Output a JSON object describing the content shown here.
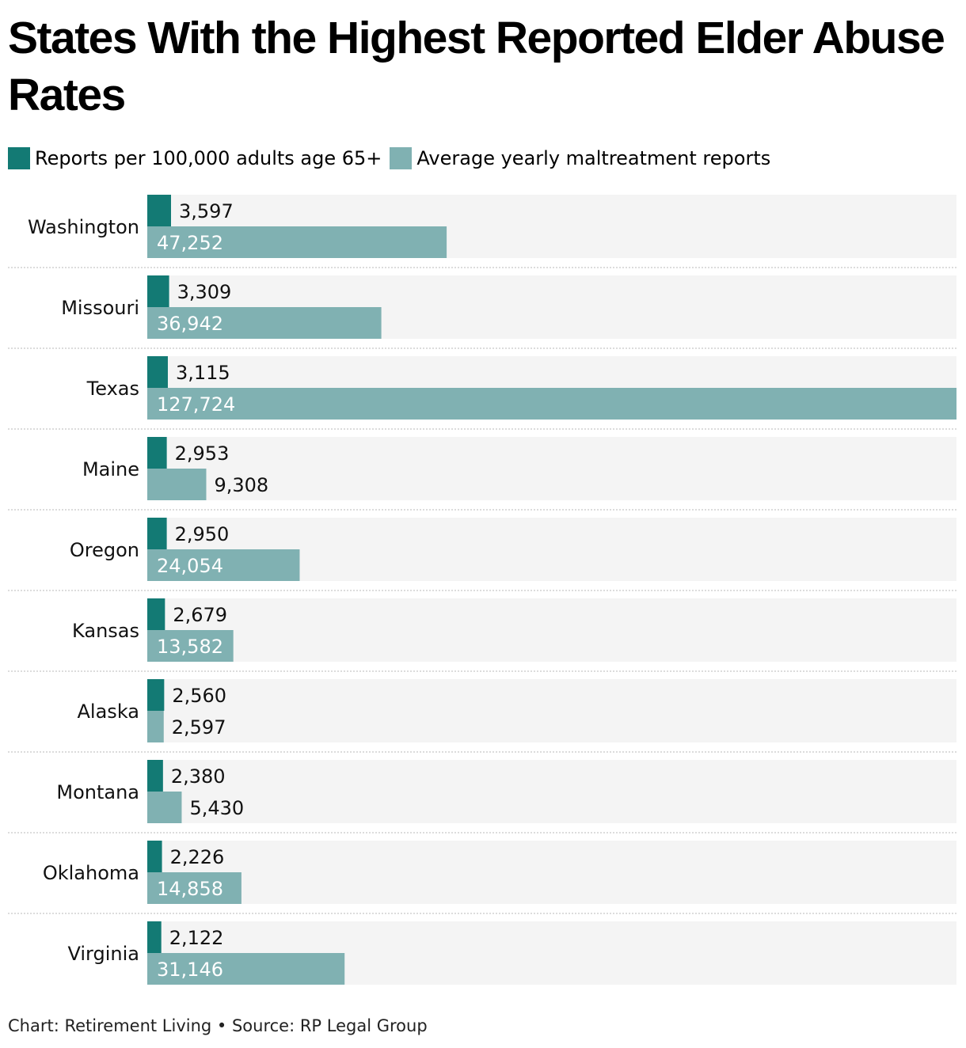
{
  "title": "States With the Highest Reported Elder Abuse Rates",
  "legend": {
    "rate_label": "Reports per 100,000 adults age 65+",
    "count_label": "Average yearly maltreatment reports"
  },
  "colors": {
    "rate": "#137a74",
    "count": "#80b1b2",
    "row_bg": "#f4f4f4",
    "separator": "#c8c8c8"
  },
  "footer": "Chart: Retirement Living • Source: RP Legal Group",
  "chart_data": {
    "type": "bar",
    "orientation": "horizontal",
    "title": "States With the Highest Reported Elder Abuse Rates",
    "categories": [
      "Washington",
      "Missouri",
      "Texas",
      "Maine",
      "Oregon",
      "Kansas",
      "Alaska",
      "Montana",
      "Oklahoma",
      "Virginia"
    ],
    "series": [
      {
        "name": "Reports per 100,000 adults age 65+",
        "values": [
          3597,
          3309,
          3115,
          2953,
          2950,
          2679,
          2560,
          2380,
          2226,
          2122
        ],
        "labels": [
          "3,597",
          "3,309",
          "3,115",
          "2,953",
          "2,950",
          "2,679",
          "2,560",
          "2,380",
          "2,226",
          "2,122"
        ]
      },
      {
        "name": "Average yearly maltreatment reports",
        "values": [
          47252,
          36942,
          127724,
          9308,
          24054,
          13582,
          2597,
          5430,
          14858,
          31146
        ],
        "labels": [
          "47,252",
          "36,942",
          "127,724",
          "9,308",
          "24,054",
          "13,582",
          "2,597",
          "5,430",
          "14,858",
          "31,146"
        ]
      }
    ],
    "xlim": [
      0,
      127724
    ],
    "legend_position": "top-left",
    "grid": false
  }
}
